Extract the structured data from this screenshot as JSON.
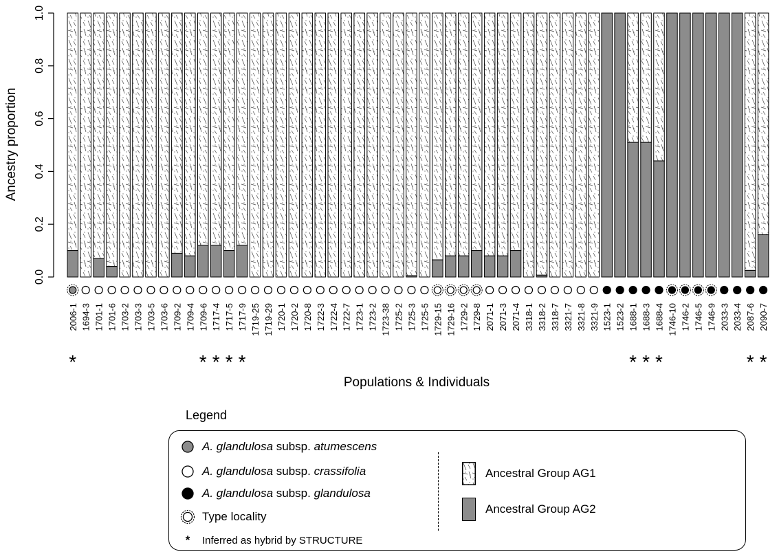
{
  "chart_data": {
    "type": "bar",
    "stacked": true,
    "ylabel": "Ancestry proportion",
    "xlabel": "Populations & Individuals",
    "ylim": [
      0,
      1
    ],
    "yticks": [
      "0.0",
      "0.2",
      "0.4",
      "0.6",
      "0.8",
      "1.0"
    ],
    "categories": [
      "2006-1",
      "1694-3",
      "1701-1",
      "1701-6",
      "1703-2",
      "1703-3",
      "1703-5",
      "1703-6",
      "1709-2",
      "1709-4",
      "1709-6",
      "1717-4",
      "1717-5",
      "1717-9",
      "1719-25",
      "1719-29",
      "1720-1",
      "1720-2",
      "1720-8",
      "1722-3",
      "1722-4",
      "1722-7",
      "1723-1",
      "1723-2",
      "1723-38",
      "1725-2",
      "1725-3",
      "1725-5",
      "1729-15",
      "1729-16",
      "1729-2",
      "1729-8",
      "2071-1",
      "2071-3",
      "2071-4",
      "3318-1",
      "3318-2",
      "3318-7",
      "3321-7",
      "3321-8",
      "3321-9",
      "1523-1",
      "1523-2",
      "1688-1",
      "1688-3",
      "1688-4",
      "1746-10",
      "1746-2",
      "1746-5",
      "1746-9",
      "2033-3",
      "2033-4",
      "2087-6",
      "2090-7"
    ],
    "series": [
      {
        "name": "Ancestral Group AG2",
        "values": [
          0.1,
          0.0,
          0.07,
          0.04,
          0.0,
          0.0,
          0.0,
          0.0,
          0.09,
          0.08,
          0.12,
          0.12,
          0.1,
          0.12,
          0.0,
          0.0,
          0.0,
          0.0,
          0.0,
          0.0,
          0.0,
          0.0,
          0.0,
          0.0,
          0.0,
          0.0,
          0.005,
          0.0,
          0.065,
          0.08,
          0.08,
          0.1,
          0.08,
          0.08,
          0.1,
          0.0,
          0.007,
          0.0,
          0.0,
          0.0,
          0.0,
          1.0,
          1.0,
          0.51,
          0.51,
          0.44,
          1.0,
          1.0,
          1.0,
          1.0,
          1.0,
          1.0,
          0.025,
          0.16
        ]
      },
      {
        "name": "Ancestral Group AG1",
        "values": [
          0.9,
          1.0,
          0.93,
          0.96,
          1.0,
          1.0,
          1.0,
          1.0,
          0.91,
          0.92,
          0.88,
          0.88,
          0.9,
          0.88,
          1.0,
          1.0,
          1.0,
          1.0,
          1.0,
          1.0,
          1.0,
          1.0,
          1.0,
          1.0,
          1.0,
          1.0,
          0.995,
          1.0,
          0.935,
          0.92,
          0.92,
          0.9,
          0.92,
          0.92,
          0.9,
          1.0,
          0.993,
          1.0,
          1.0,
          1.0,
          1.0,
          0.0,
          0.0,
          0.49,
          0.49,
          0.56,
          0.0,
          0.0,
          0.0,
          0.0,
          0.0,
          0.0,
          0.975,
          0.84
        ]
      }
    ],
    "subspecies": [
      "atumescens",
      "crassifolia",
      "crassifolia",
      "crassifolia",
      "crassifolia",
      "crassifolia",
      "crassifolia",
      "crassifolia",
      "crassifolia",
      "crassifolia",
      "crassifolia",
      "crassifolia",
      "crassifolia",
      "crassifolia",
      "crassifolia",
      "crassifolia",
      "crassifolia",
      "crassifolia",
      "crassifolia",
      "crassifolia",
      "crassifolia",
      "crassifolia",
      "crassifolia",
      "crassifolia",
      "crassifolia",
      "crassifolia",
      "crassifolia",
      "crassifolia",
      "crassifolia",
      "crassifolia",
      "crassifolia",
      "crassifolia",
      "crassifolia",
      "crassifolia",
      "crassifolia",
      "crassifolia",
      "crassifolia",
      "crassifolia",
      "crassifolia",
      "crassifolia",
      "crassifolia",
      "glandulosa",
      "glandulosa",
      "glandulosa",
      "glandulosa",
      "glandulosa",
      "glandulosa",
      "glandulosa",
      "glandulosa",
      "glandulosa",
      "glandulosa",
      "glandulosa",
      "glandulosa",
      "glandulosa"
    ],
    "type_locality": [
      true,
      false,
      false,
      false,
      false,
      false,
      false,
      false,
      false,
      false,
      false,
      false,
      false,
      false,
      false,
      false,
      false,
      false,
      false,
      false,
      false,
      false,
      false,
      false,
      false,
      false,
      false,
      false,
      true,
      true,
      true,
      true,
      false,
      false,
      false,
      false,
      false,
      false,
      false,
      false,
      false,
      false,
      false,
      false,
      false,
      false,
      true,
      true,
      true,
      true,
      false,
      false,
      false,
      false
    ],
    "hybrid": [
      true,
      false,
      false,
      false,
      false,
      false,
      false,
      false,
      false,
      false,
      true,
      true,
      true,
      true,
      false,
      false,
      false,
      false,
      false,
      false,
      false,
      false,
      false,
      false,
      false,
      false,
      false,
      false,
      false,
      false,
      false,
      false,
      false,
      false,
      false,
      false,
      false,
      false,
      false,
      false,
      false,
      false,
      false,
      true,
      true,
      true,
      false,
      false,
      false,
      false,
      false,
      false,
      true,
      true
    ],
    "hybrid_marker": "*",
    "colors": {
      "AG2": "#8c8c8c",
      "atumescens": "#8c8c8c",
      "crassifolia": "#ffffff",
      "glandulosa": "#000000"
    }
  },
  "legend": {
    "title": "Legend",
    "items": [
      {
        "italic1": "A. glandulosa",
        "plain": " subsp. ",
        "italic2": "atumescens"
      },
      {
        "italic1": "A. glandulosa",
        "plain": " subsp. ",
        "italic2": "crassifolia"
      },
      {
        "italic1": "A. glandulosa",
        "plain": " subsp. ",
        "italic2": "glandulosa"
      }
    ],
    "type_locality": "Type locality",
    "hybrid_symbol": "*",
    "hybrid": "Inferred as hybrid by STRUCTURE",
    "groups": [
      "Ancestral Group AG1",
      "Ancestral Group AG2"
    ]
  }
}
